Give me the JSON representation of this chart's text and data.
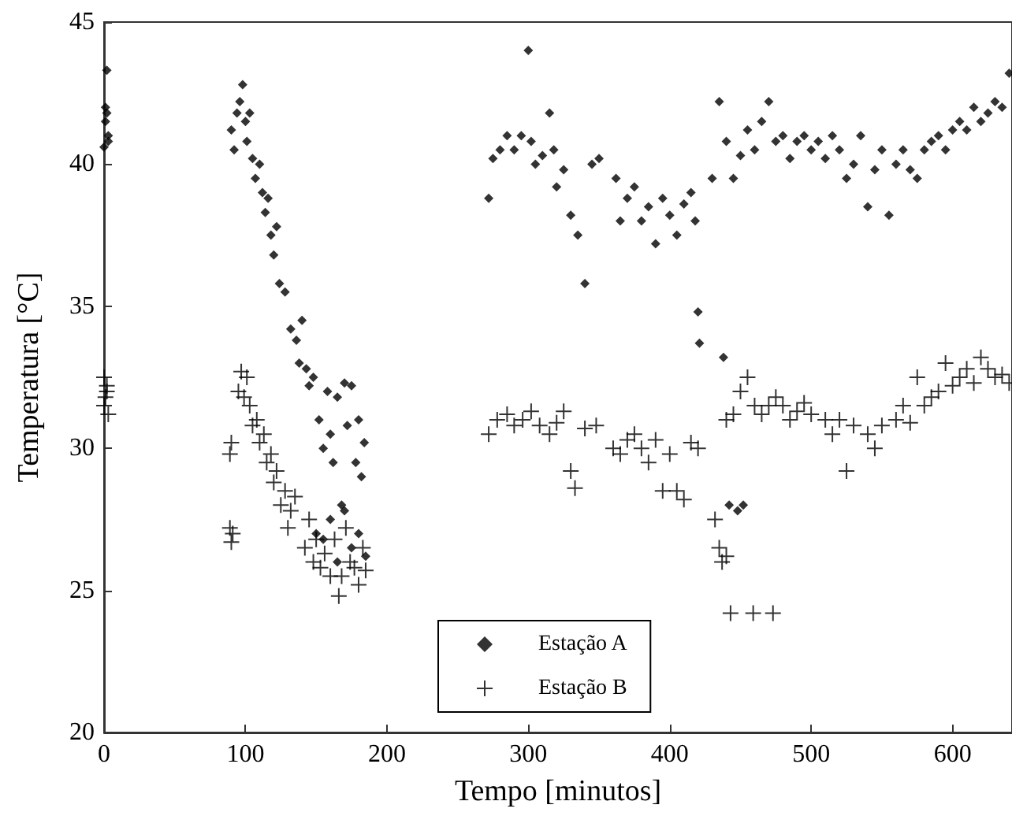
{
  "chart_data": {
    "type": "scatter",
    "xlabel": "Tempo [minutos]",
    "ylabel": "Temperatura [°C]",
    "xlim": [
      0,
      642
    ],
    "xticks": [
      0,
      100,
      200,
      300,
      400,
      500,
      600
    ],
    "ylim": [
      20,
      45
    ],
    "yticks": [
      20,
      25,
      30,
      35,
      40,
      45
    ],
    "grid": false,
    "legend": "bottom",
    "series": [
      {
        "name": "Estação A",
        "color": "#000000",
        "marker": "diamond",
        "x": [
          0,
          1,
          1,
          2,
          2,
          3,
          3,
          90,
          92,
          94,
          96,
          98,
          100,
          101,
          103,
          105,
          107,
          110,
          112,
          114,
          116,
          118,
          120,
          122,
          124,
          128,
          132,
          136,
          138,
          140,
          143,
          145,
          148,
          152,
          155,
          158,
          160,
          162,
          165,
          168,
          170,
          172,
          175,
          178,
          180,
          182,
          184,
          150,
          155,
          160,
          165,
          170,
          175,
          180,
          185,
          272,
          275,
          280,
          285,
          290,
          295,
          300,
          302,
          305,
          310,
          315,
          318,
          320,
          325,
          330,
          335,
          340,
          345,
          350,
          362,
          365,
          370,
          375,
          380,
          385,
          390,
          395,
          400,
          405,
          410,
          415,
          418,
          420,
          421,
          438,
          442,
          448,
          452,
          430,
          435,
          440,
          445,
          450,
          455,
          460,
          465,
          470,
          475,
          480,
          485,
          490,
          495,
          500,
          505,
          510,
          515,
          520,
          525,
          530,
          535,
          540,
          545,
          550,
          555,
          560,
          565,
          570,
          575,
          580,
          585,
          590,
          595,
          600,
          605,
          610,
          615,
          620,
          625,
          630,
          635,
          640
        ],
        "values": [
          40.6,
          41.5,
          42,
          41.8,
          43.3,
          41,
          40.8,
          41.2,
          40.5,
          41.8,
          42.2,
          42.8,
          41.5,
          40.8,
          41.8,
          40.2,
          39.5,
          40,
          39,
          38.3,
          38.8,
          37.5,
          36.8,
          37.8,
          35.8,
          35.5,
          34.2,
          33.8,
          33,
          34.5,
          32.8,
          32.2,
          32.5,
          31,
          30,
          32,
          30.5,
          29.5,
          31.8,
          28,
          32.3,
          30.8,
          32.2,
          29.5,
          31,
          29,
          30.2,
          27,
          26.8,
          27.5,
          26,
          27.8,
          26.5,
          27,
          26.2,
          38.8,
          40.2,
          40.5,
          41,
          40.5,
          41,
          44,
          40.8,
          40,
          40.3,
          41.8,
          40.5,
          39.2,
          39.8,
          38.2,
          37.5,
          35.8,
          40,
          40.2,
          39.5,
          38,
          38.8,
          39.2,
          38,
          38.5,
          37.2,
          38.8,
          38.2,
          37.5,
          38.6,
          39,
          38,
          34.8,
          33.7,
          33.2,
          28,
          27.8,
          28,
          39.5,
          42.2,
          40.8,
          39.5,
          40.3,
          41.2,
          40.5,
          41.5,
          42.2,
          40.8,
          41,
          40.2,
          40.8,
          41,
          40.5,
          40.8,
          40.2,
          41,
          40.5,
          39.5,
          40,
          41,
          38.5,
          39.8,
          40.5,
          38.2,
          40,
          40.5,
          39.8,
          39.5,
          40.5,
          40.8,
          41,
          40.5,
          41.2,
          41.5,
          41.2,
          42,
          41.5,
          41.8,
          42.2,
          42,
          43.2
        ]
      },
      {
        "name": "Estação B",
        "color": "#000000",
        "marker": "cross",
        "x": [
          0,
          0,
          1,
          2,
          3,
          2,
          89,
          90,
          91,
          89,
          90,
          95,
          97,
          99,
          101,
          103,
          105,
          108,
          110,
          113,
          115,
          118,
          120,
          122,
          125,
          128,
          130,
          132,
          135,
          142,
          145,
          148,
          150,
          153,
          156,
          160,
          163,
          166,
          168,
          171,
          174,
          177,
          180,
          183,
          185,
          272,
          278,
          285,
          290,
          296,
          302,
          308,
          315,
          320,
          325,
          330,
          333,
          340,
          348,
          360,
          365,
          370,
          375,
          380,
          385,
          390,
          395,
          400,
          405,
          410,
          415,
          420,
          432,
          435,
          437,
          440,
          443,
          459,
          473,
          440,
          445,
          450,
          455,
          460,
          465,
          470,
          475,
          480,
          485,
          490,
          495,
          500,
          510,
          515,
          520,
          525,
          530,
          540,
          545,
          550,
          560,
          565,
          570,
          575,
          580,
          585,
          590,
          595,
          600,
          605,
          610,
          615,
          620,
          625,
          630,
          635,
          640
        ],
        "values": [
          31.5,
          32.5,
          31.8,
          32.2,
          31.2,
          32,
          27.2,
          26.7,
          27,
          29.8,
          30.2,
          32,
          32.7,
          31.8,
          32.5,
          31.5,
          30.8,
          31,
          30.2,
          30.5,
          29.5,
          29.8,
          28.8,
          29.2,
          28,
          28.5,
          27.2,
          27.8,
          28.3,
          26.5,
          27.5,
          26,
          26.8,
          25.8,
          26.3,
          25.5,
          26.8,
          24.8,
          25.5,
          27.2,
          26,
          25.8,
          25.2,
          26.5,
          25.7,
          30.5,
          31,
          31.2,
          30.8,
          31,
          31.3,
          30.8,
          30.5,
          30.9,
          31.3,
          29.2,
          28.6,
          30.7,
          30.8,
          30,
          29.8,
          30.3,
          30.5,
          30,
          29.5,
          30.3,
          28.5,
          29.8,
          28.5,
          28.2,
          30.2,
          30,
          27.5,
          26.5,
          26,
          26.2,
          24.2,
          24.2,
          24.2,
          31,
          31.2,
          32,
          32.5,
          31.5,
          31.2,
          31.5,
          31.8,
          31.5,
          31,
          31.3,
          31.6,
          31.2,
          31,
          30.5,
          31,
          29.2,
          30.8,
          30.5,
          30,
          30.8,
          31,
          31.5,
          30.9,
          32.5,
          31.5,
          31.8,
          32,
          33,
          32.2,
          32.5,
          32.8,
          32.3,
          33.2,
          32.8,
          32.5,
          32.6,
          32.3
        ]
      }
    ]
  }
}
